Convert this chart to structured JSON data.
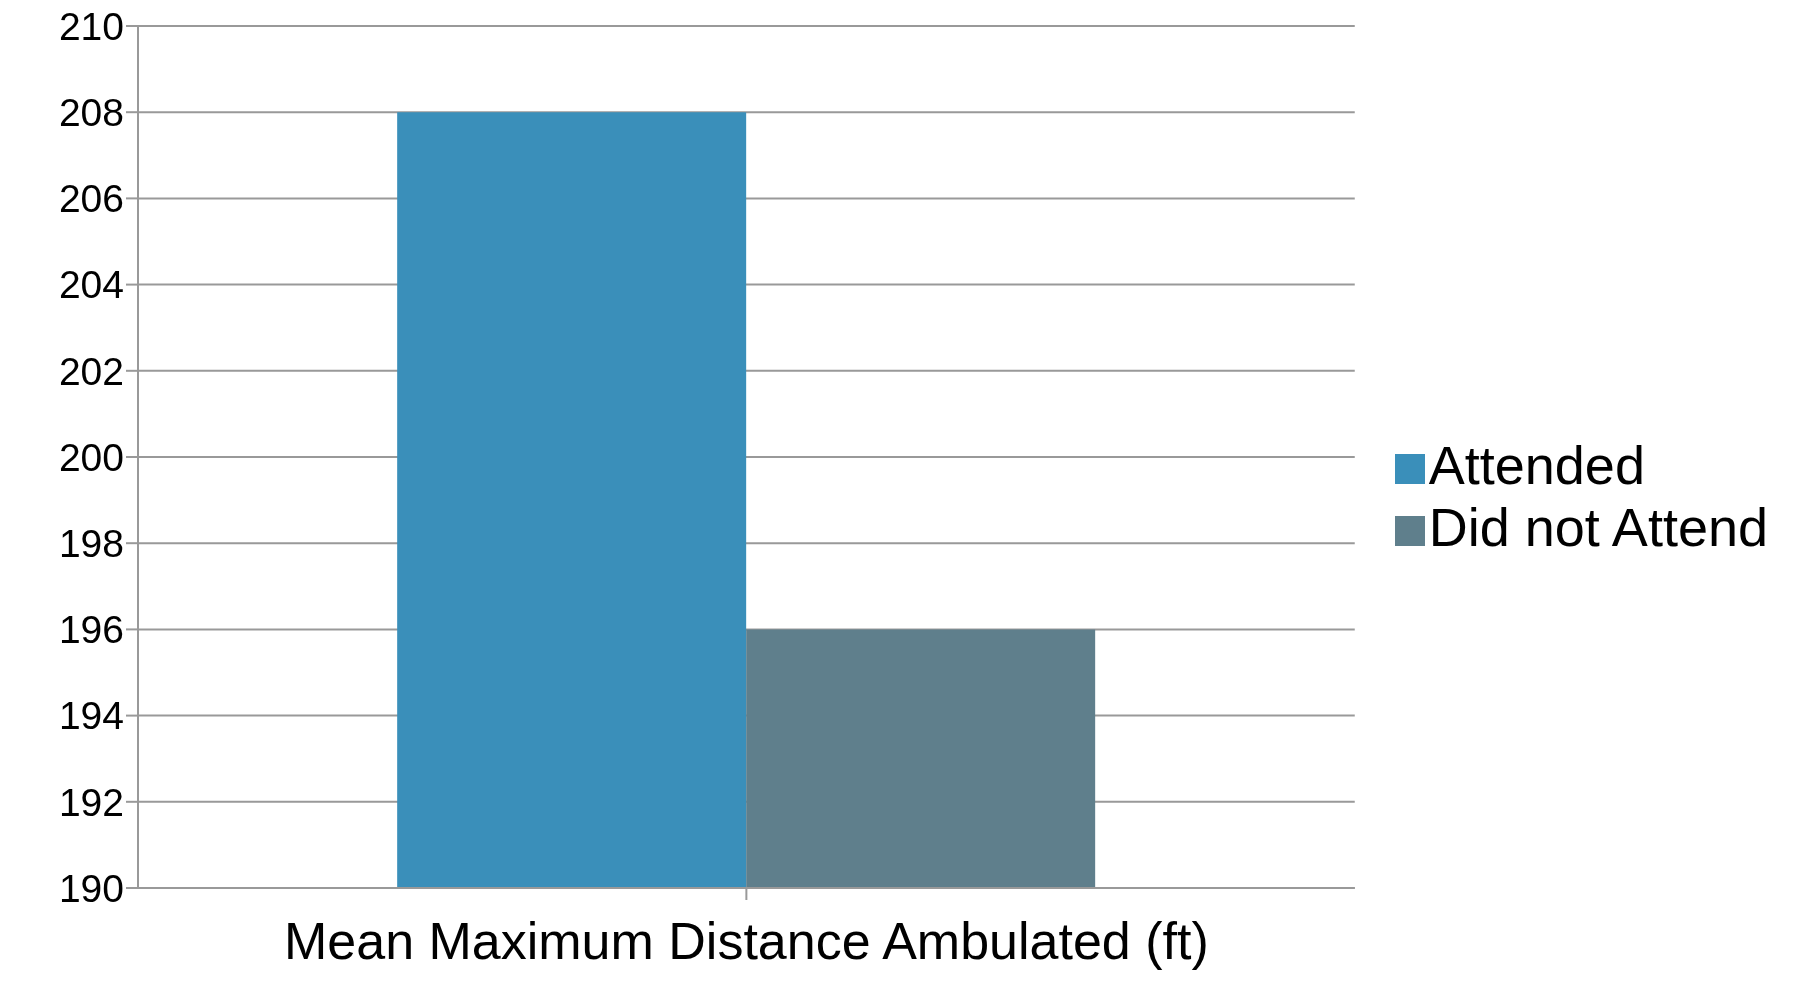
{
  "chart_data": {
    "type": "bar",
    "categories": [
      "Mean Maximum Distance Ambulated (ft)"
    ],
    "series": [
      {
        "name": "Attended",
        "color": "#3a8fba",
        "values": [
          208
        ]
      },
      {
        "name": "Did not Attend",
        "color": "#5f7f8c",
        "values": [
          196
        ]
      }
    ],
    "ylim": [
      190,
      210
    ],
    "yticks": [
      190,
      192,
      194,
      196,
      198,
      200,
      202,
      204,
      206,
      208,
      210
    ],
    "grid": "y",
    "legend": "right"
  }
}
